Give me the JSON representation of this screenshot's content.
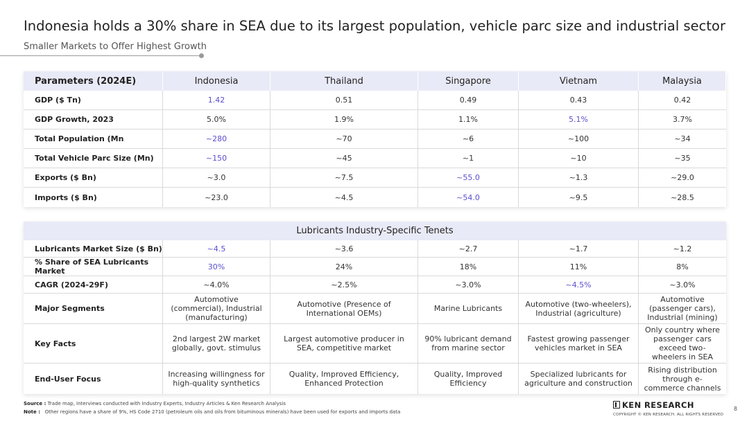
{
  "title": "Indonesia holds a 30% share in SEA due to its largest population, vehicle parc size and industrial sector",
  "subtitle": "Smaller Markets to Offer Highest Growth",
  "table1": {
    "header": [
      "Parameters (2024E)",
      "Indonesia",
      "Thailand",
      "Singapore",
      "Vietnam",
      "Malaysia"
    ],
    "rows": [
      {
        "label": "GDP ($ Tn)",
        "values": [
          "1.42",
          "0.51",
          "0.49",
          "0.43",
          "0.42"
        ],
        "highlight": 0
      },
      {
        "label": "GDP Growth, 2023",
        "values": [
          "5.0%",
          "1.9%",
          "1.1%",
          "5.1%",
          "3.7%"
        ],
        "highlight": 3
      },
      {
        "label": "Total Population (Mn",
        "values": [
          "~280",
          "~70",
          "~6",
          "~100",
          "~34"
        ],
        "highlight": 0
      },
      {
        "label": "Total Vehicle Parc Size (Mn)",
        "values": [
          "~150",
          "~45",
          "~1",
          "~10",
          "~35"
        ],
        "highlight": 0
      },
      {
        "label": "Exports ($ Bn)",
        "values": [
          "~3.0",
          "~7.5",
          "~55.0",
          "~1.3",
          "~29.0"
        ],
        "highlight": 2
      },
      {
        "label": "Imports ($ Bn)",
        "values": [
          "~23.0",
          "~4.5",
          "~54.0",
          "~9.5",
          "~28.5"
        ],
        "highlight": 2
      }
    ]
  },
  "table2": {
    "heading": "Lubricants Industry-Specific Tenets",
    "rows": [
      {
        "label": "Lubricants Market Size ($ Bn)",
        "values": [
          "~4.5",
          "~3.6",
          "~2.7",
          "~1.7",
          "~1.2"
        ],
        "highlight": 0
      },
      {
        "label": "% Share of SEA Lubricants Market",
        "values": [
          "30%",
          "24%",
          "18%",
          "11%",
          "8%"
        ],
        "highlight": 0
      },
      {
        "label": "CAGR (2024-29F)",
        "values": [
          "~4.0%",
          "~2.5%",
          "~3.0%",
          "~4.5%",
          "~3.0%"
        ],
        "highlight": 3
      },
      {
        "label": "Major Segments",
        "values": [
          "Automotive (commercial), Industrial (manufacturing)",
          "Automotive (Presence of International OEMs)",
          "Marine Lubricants",
          "Automotive (two-wheelers), Industrial (agriculture)",
          "Automotive (passenger cars), Industrial (mining)"
        ],
        "highlight": -1
      },
      {
        "label": "Key Facts",
        "values": [
          "2nd largest 2W market globally, govt. stimulus",
          "Largest automotive producer in SEA, competitive market",
          "90% lubricant demand from marine sector",
          "Fastest growing passenger vehicles market in SEA",
          "Only country where passenger cars exceed two-wheelers in SEA"
        ],
        "highlight": -1
      },
      {
        "label": "End-User Focus",
        "values": [
          "Increasing willingness for high-quality synthetics",
          "Quality, Improved Efficiency, Enhanced Protection",
          "Quality, Improved Efficiency",
          "Specialized lubricants for agriculture and construction",
          "Rising distribution through e-commerce channels"
        ],
        "highlight": -1
      }
    ]
  },
  "colors": {
    "highlight": "#5a4fcf",
    "header_bg": "#e9eaf7"
  },
  "footer": {
    "source_label": "Source :",
    "source_text": "Trade map, Interviews conducted with Industry Experts, Industry Articles & Ken Research Analysis",
    "note_label": "Note :",
    "note_text": "Other regions have a share of 9%, HS Code 2710 (petroleum oils and oils from bituminous minerals) have been used for exports and imports data"
  },
  "brand": {
    "logo_text": "KEN RESEARCH",
    "copyright": "COPYRIGHT © KEN RESEARCH. ALL RIGHTS RESERVED"
  },
  "page_number": "8"
}
